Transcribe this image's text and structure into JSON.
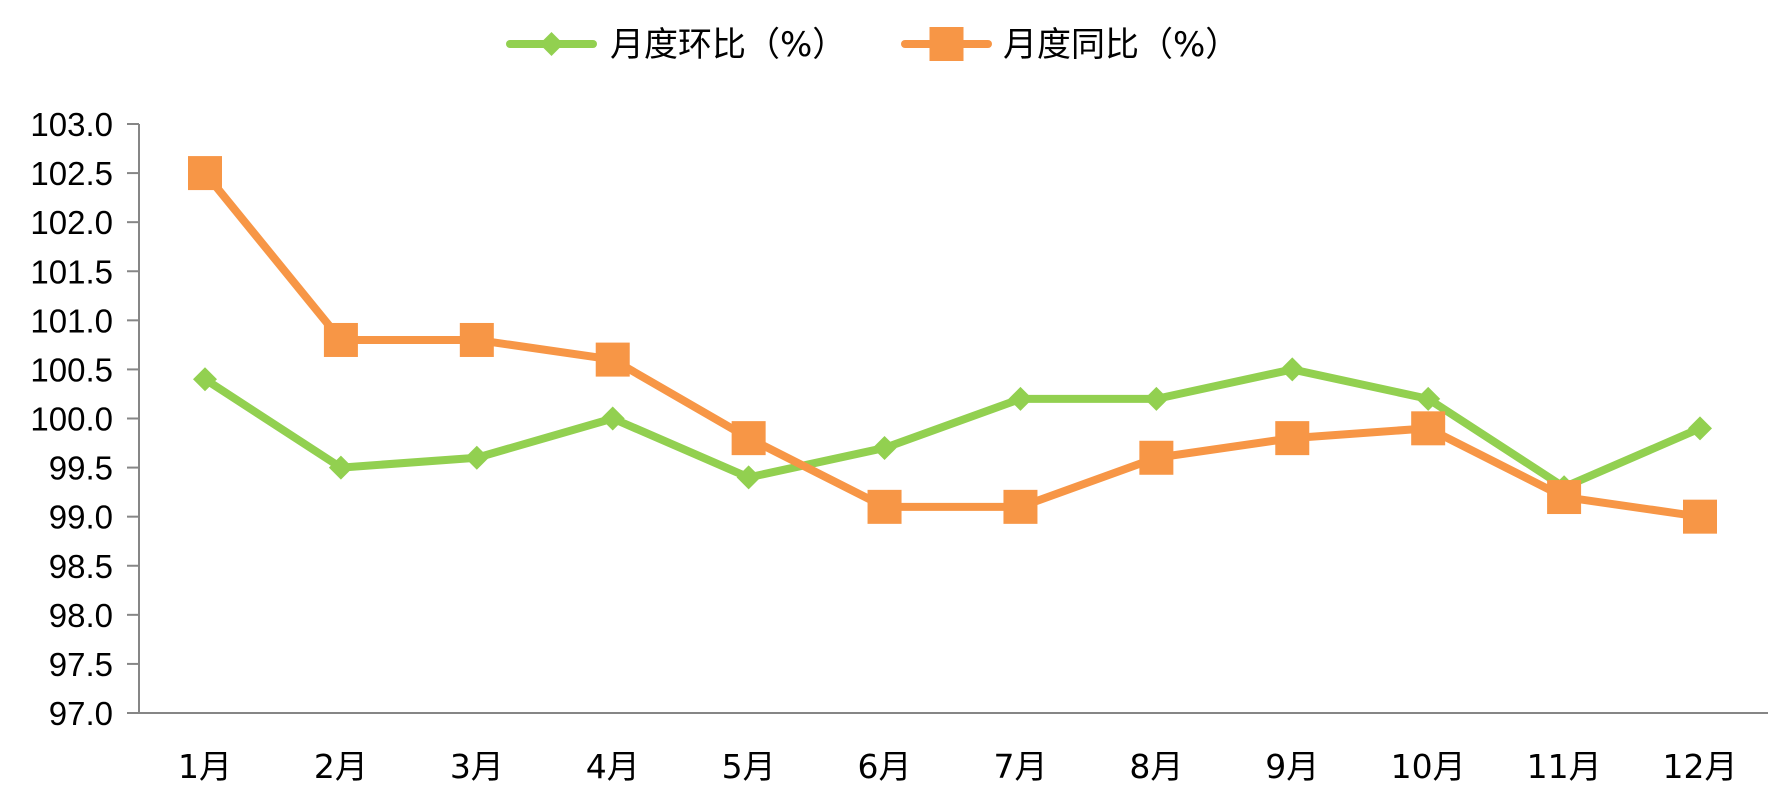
{
  "chart_data": {
    "type": "line",
    "categories": [
      "1月",
      "2月",
      "3月",
      "4月",
      "5月",
      "6月",
      "7月",
      "8月",
      "9月",
      "10月",
      "11月",
      "12月"
    ],
    "series": [
      {
        "name": "月度环比（%）",
        "color": "#92d050",
        "marker": "diamond",
        "values": [
          100.4,
          99.5,
          99.6,
          100.0,
          99.4,
          99.7,
          100.2,
          100.2,
          100.5,
          100.2,
          99.3,
          99.9
        ]
      },
      {
        "name": "月度同比（%）",
        "color": "#f79646",
        "marker": "square",
        "values": [
          102.5,
          100.8,
          100.8,
          100.6,
          99.8,
          99.1,
          99.1,
          99.6,
          99.8,
          99.9,
          99.2,
          99.0
        ]
      }
    ],
    "ylim": [
      97.0,
      103.0
    ],
    "ytick_step": 0.5,
    "ytick_labels": [
      "97.0",
      "97.5",
      "98.0",
      "98.5",
      "99.0",
      "99.5",
      "100.0",
      "100.5",
      "101.0",
      "101.5",
      "102.0",
      "102.5",
      "103.0"
    ],
    "grid": false,
    "legend": "top-center",
    "title": "",
    "xlabel": "",
    "ylabel": ""
  }
}
